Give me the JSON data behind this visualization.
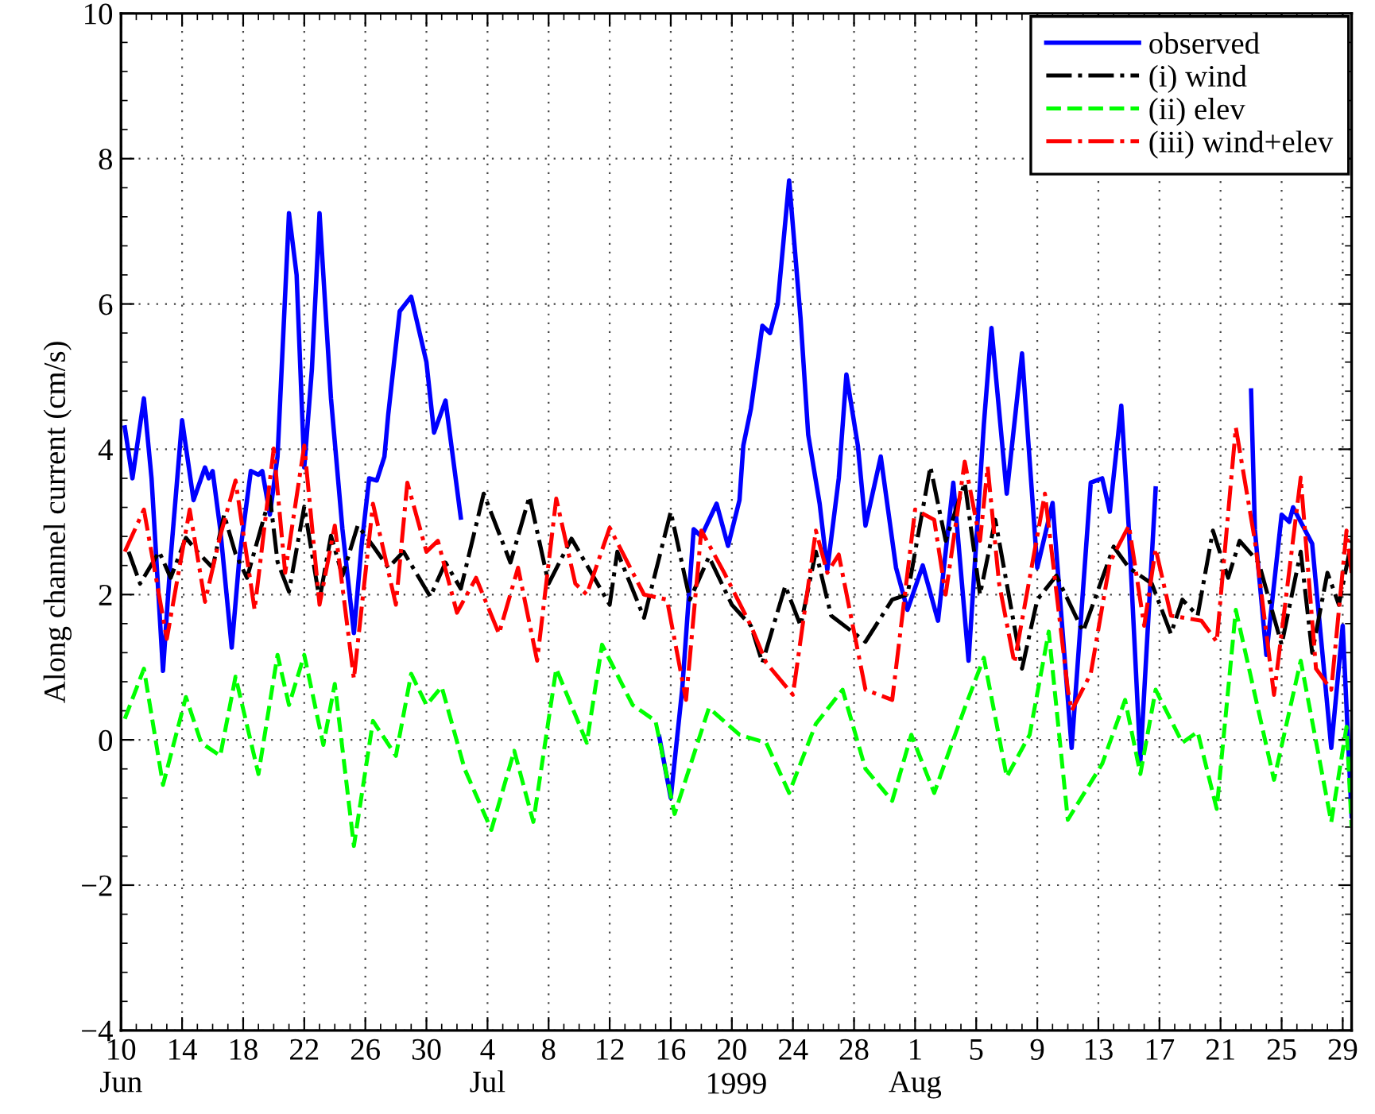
{
  "chart_data": {
    "type": "line",
    "xlabel": "1999",
    "ylabel": "Along channel current (cm/s)",
    "xlim": [
      "1999-06-10",
      "1999-08-29T14:00"
    ],
    "xticks": [
      {
        "value": "1999-06-10",
        "label": "10\nJun"
      },
      {
        "value": "1999-06-14",
        "label": "14"
      },
      {
        "value": "1999-06-18",
        "label": "18"
      },
      {
        "value": "1999-06-22",
        "label": "22"
      },
      {
        "value": "1999-06-26",
        "label": "26"
      },
      {
        "value": "1999-06-30",
        "label": "30"
      },
      {
        "value": "1999-07-04",
        "label": "4\nJul"
      },
      {
        "value": "1999-07-08",
        "label": "8"
      },
      {
        "value": "1999-07-12",
        "label": "12"
      },
      {
        "value": "1999-07-16",
        "label": "16"
      },
      {
        "value": "1999-07-20",
        "label": "20"
      },
      {
        "value": "1999-07-24",
        "label": "24"
      },
      {
        "value": "1999-07-28",
        "label": "28"
      },
      {
        "value": "1999-08-01",
        "label": "1\nAug"
      },
      {
        "value": "1999-08-05",
        "label": "5"
      },
      {
        "value": "1999-08-09",
        "label": "9"
      },
      {
        "value": "1999-08-13",
        "label": "13"
      },
      {
        "value": "1999-08-17",
        "label": "17"
      },
      {
        "value": "1999-08-21",
        "label": "21"
      },
      {
        "value": "1999-08-25",
        "label": "25"
      },
      {
        "value": "1999-08-29",
        "label": "29"
      }
    ],
    "ylim": [
      -4,
      10
    ],
    "yticks": [
      {
        "value": -4,
        "label": "−4"
      },
      {
        "value": -2,
        "label": "−2"
      },
      0,
      2,
      4,
      6,
      8,
      10
    ],
    "grid": true,
    "legend": "top right",
    "series": [
      {
        "name": "observed",
        "color": "#0000ff",
        "line_style": "solid",
        "x": [
          "1999-06-10T06:00",
          "1999-06-10T18:00",
          "1999-06-11T12:00",
          "1999-06-12T00:00",
          "1999-06-12T18:00",
          "1999-06-13T06:00",
          "1999-06-14T00:00",
          "1999-06-14T18:00",
          "1999-06-15T12:00",
          "1999-06-15T18:00",
          "1999-06-16T00:00",
          "1999-06-16T12:00",
          "1999-06-17T06:00",
          "1999-06-17T18:00",
          "1999-06-18T12:00",
          "1999-06-19T00:00",
          "1999-06-19T06:00",
          "1999-06-19T18:00",
          "1999-06-20T06:00",
          "1999-06-21T00:00",
          "1999-06-21T12:00",
          "1999-06-22T00:00",
          "1999-06-22T12:00",
          "1999-06-23T00:00",
          "1999-06-23T18:00",
          "1999-06-24T12:00",
          "1999-06-25T06:00",
          "1999-06-25T18:00",
          "1999-06-26T06:00",
          "1999-06-26T18:00",
          "1999-06-27T06:00",
          "1999-06-27T12:00",
          "1999-06-28T06:00",
          "1999-06-29T00:00",
          "1999-06-30T00:00",
          "1999-06-30T12:00",
          "1999-07-01T06:00",
          "1999-07-02T06:00",
          "1999-07-10T00:00",
          "1999-07-15T06:00",
          "1999-07-16T00:00",
          "1999-07-16T18:00",
          "1999-07-17T12:00",
          "1999-07-18T00:00",
          "1999-07-19T00:00",
          "1999-07-19T18:00",
          "1999-07-20T12:00",
          "1999-07-20T18:00",
          "1999-07-21T06:00",
          "1999-07-22T00:00",
          "1999-07-22T12:00",
          "1999-07-23T00:00",
          "1999-07-23T18:00",
          "1999-07-24T12:00",
          "1999-07-25T00:00",
          "1999-07-25T18:00",
          "1999-07-26T06:00",
          "1999-07-27T00:00",
          "1999-07-27T12:00",
          "1999-07-28T06:00",
          "1999-07-28T18:00",
          "1999-07-29T18:00",
          "1999-07-30T18:00",
          "1999-07-31T12:00",
          "1999-08-01T12:00",
          "1999-08-02T12:00",
          "1999-08-03T12:00",
          "1999-08-04T12:00",
          "1999-08-05T12:00",
          "1999-08-06T00:00",
          "1999-08-07T00:00",
          "1999-08-08T00:00",
          "1999-08-09T00:00",
          "1999-08-10T00:00",
          "1999-08-11T06:00",
          "1999-08-12T12:00",
          "1999-08-13T06:00",
          "1999-08-13T18:00",
          "1999-08-14T12:00",
          "1999-08-15T00:00",
          "1999-08-15T18:00",
          "1999-08-16T18:00",
          "1999-08-20T00:00",
          "1999-08-23T00:00",
          "1999-08-23T06:00",
          "1999-08-24T00:00",
          "1999-08-25T00:00",
          "1999-08-25T12:00",
          "1999-08-25T18:00",
          "1999-08-27T00:00",
          "1999-08-28T06:00",
          "1999-08-29T00:00",
          "1999-08-29T14:00"
        ],
        "values": [
          4.3,
          3.6,
          4.7,
          3.6,
          0.95,
          2.5,
          4.4,
          3.3,
          3.75,
          3.6,
          3.7,
          2.9,
          1.27,
          2.5,
          3.7,
          3.65,
          3.7,
          3.1,
          3.9,
          7.25,
          6.4,
          3.75,
          5.1,
          7.25,
          4.7,
          2.9,
          1.47,
          2.67,
          3.6,
          3.57,
          3.9,
          4.48,
          5.9,
          6.1,
          5.2,
          4.23,
          4.67,
          3.06,
          null,
          0.04,
          -0.8,
          0.7,
          2.9,
          2.8,
          3.25,
          2.67,
          3.3,
          4.05,
          4.56,
          5.7,
          5.6,
          6.0,
          7.7,
          5.8,
          4.2,
          3.25,
          2.34,
          3.6,
          5.03,
          4.05,
          2.95,
          3.9,
          2.37,
          1.79,
          2.4,
          1.64,
          3.54,
          1.09,
          4.34,
          5.67,
          3.39,
          5.32,
          2.37,
          3.26,
          -0.11,
          3.54,
          3.6,
          3.14,
          4.6,
          2.89,
          -0.29,
          3.46,
          null,
          4.81,
          2.89,
          1.17,
          3.1,
          3.0,
          3.2,
          2.7,
          -0.11,
          1.57,
          -1.05
        ]
      },
      {
        "name": "(i) wind",
        "color": "#000000",
        "line_style": "dashdot",
        "x": [
          "1999-06-10T12:00",
          "1999-06-11T06:00",
          "1999-06-12T12:00",
          "1999-06-13T06:00",
          "1999-06-14T06:00",
          "1999-06-15T00:00",
          "1999-06-16T00:00",
          "1999-06-16T18:00",
          "1999-06-17T12:00",
          "1999-06-18T06:00",
          "1999-06-19T18:00",
          "1999-06-20T06:00",
          "1999-06-21T00:00",
          "1999-06-22T00:00",
          "1999-06-23T00:00",
          "1999-06-23T18:00",
          "1999-06-24T12:00",
          "1999-06-25T12:00",
          "1999-06-26T12:00",
          "1999-06-27T12:00",
          "1999-06-28T12:00",
          "1999-06-30T06:00",
          "1999-07-01T06:00",
          "1999-07-02T06:00",
          "1999-07-03T18:00",
          "1999-07-05T12:00",
          "1999-07-06T18:00",
          "1999-07-08T00:00",
          "1999-07-09T12:00",
          "1999-07-12T00:00",
          "1999-07-12T12:00",
          "1999-07-14T06:00",
          "1999-07-16T00:00",
          "1999-07-17T06:00",
          "1999-07-18T12:00",
          "1999-07-20T00:00",
          "1999-07-21T06:00",
          "1999-07-22T00:00",
          "1999-07-23T12:00",
          "1999-07-24T12:00",
          "1999-07-25T12:00",
          "1999-07-26T12:00",
          "1999-07-28T18:00",
          "1999-07-30T12:00",
          "1999-07-31T12:00",
          "1999-08-02T00:00",
          "1999-08-03T00:00",
          "1999-08-04T06:00",
          "1999-08-05T06:00",
          "1999-08-06T06:00",
          "1999-08-08T00:00",
          "1999-08-09T00:00",
          "1999-08-10T06:00",
          "1999-08-12T00:00",
          "1999-08-14T00:00",
          "1999-08-15T00:00",
          "1999-08-16T12:00",
          "1999-08-17T18:00",
          "1999-08-18T12:00",
          "1999-08-19T12:00",
          "1999-08-20T12:00",
          "1999-08-21T12:00",
          "1999-08-22T06:00",
          "1999-08-23T12:00",
          "1999-08-25T00:00",
          "1999-08-26T06:00",
          "1999-08-27T00:00",
          "1999-08-28T00:00",
          "1999-08-28T18:00",
          "1999-08-29T14:00"
        ],
        "values": [
          2.59,
          2.15,
          2.59,
          2.23,
          2.78,
          2.59,
          2.37,
          3.1,
          2.56,
          2.23,
          3.35,
          2.45,
          2.04,
          3.21,
          1.93,
          2.81,
          2.26,
          2.95,
          2.67,
          2.37,
          2.59,
          1.97,
          2.44,
          2.08,
          3.39,
          2.44,
          3.35,
          2.15,
          2.77,
          1.86,
          2.59,
          1.68,
          3.14,
          1.93,
          2.52,
          1.86,
          1.57,
          1.06,
          2.12,
          1.57,
          2.59,
          1.71,
          1.35,
          1.93,
          2.0,
          3.76,
          2.74,
          3.54,
          2.0,
          3.03,
          0.98,
          1.93,
          2.26,
          1.49,
          2.66,
          2.37,
          2.15,
          1.46,
          1.93,
          1.71,
          2.88,
          2.23,
          2.74,
          2.44,
          1.31,
          2.59,
          1.2,
          2.3,
          1.86,
          2.74
        ]
      },
      {
        "name": "(ii) elev",
        "color": "#00ff00",
        "line_style": "dashed",
        "x": [
          "1999-06-10T06:00",
          "1999-06-11T12:00",
          "1999-06-12T18:00",
          "1999-06-14T06:00",
          "1999-06-15T06:00",
          "1999-06-16T12:00",
          "1999-06-17T12:00",
          "1999-06-19T00:00",
          "1999-06-20T06:00",
          "1999-06-21T00:00",
          "1999-06-22T00:00",
          "1999-06-23T06:00",
          "1999-06-24T00:00",
          "1999-06-25T06:00",
          "1999-06-26T12:00",
          "1999-06-28T00:00",
          "1999-06-29T00:00",
          "1999-06-30T00:00",
          "1999-07-01T00:00",
          "1999-07-02T12:00",
          "1999-07-04T06:00",
          "1999-07-05T18:00",
          "1999-07-07T00:00",
          "1999-07-08T12:00",
          "1999-07-10T12:00",
          "1999-07-11T12:00",
          "1999-07-13T12:00",
          "1999-07-15T00:00",
          "1999-07-16T06:00",
          "1999-07-18T12:00",
          "1999-07-20T12:00",
          "1999-07-22T06:00",
          "1999-07-23T18:00",
          "1999-07-25T12:00",
          "1999-07-27T06:00",
          "1999-07-28T18:00",
          "1999-07-30T12:00",
          "1999-07-31T18:00",
          "1999-08-02T06:00",
          "1999-08-04T06:00",
          "1999-08-05T12:00",
          "1999-08-07T00:00",
          "1999-08-08T12:00",
          "1999-08-09T18:00",
          "1999-08-11T00:00",
          "1999-08-13T06:00",
          "1999-08-14T18:00",
          "1999-08-15T18:00",
          "1999-08-16T18:00",
          "1999-08-18T12:00",
          "1999-08-19T12:00",
          "1999-08-20T18:00",
          "1999-08-22T00:00",
          "1999-08-24T12:00",
          "1999-08-26T06:00",
          "1999-08-28T06:00",
          "1999-08-29T06:00",
          "1999-08-29T14:00"
        ],
        "values": [
          0.29,
          0.98,
          -0.62,
          0.59,
          -0.04,
          -0.22,
          0.87,
          -0.47,
          1.17,
          0.48,
          1.17,
          -0.07,
          0.77,
          -1.46,
          0.26,
          -0.22,
          0.91,
          0.48,
          0.73,
          -0.4,
          -1.24,
          -0.15,
          -1.13,
          0.98,
          -0.04,
          1.31,
          0.48,
          0.26,
          -1.02,
          0.44,
          0.07,
          -0.04,
          -0.73,
          0.22,
          0.69,
          -0.4,
          -0.84,
          0.07,
          -0.73,
          0.44,
          1.13,
          -0.51,
          0.07,
          1.49,
          -1.1,
          -0.33,
          0.55,
          -0.47,
          0.69,
          -0.04,
          0.11,
          -0.95,
          1.79,
          -0.55,
          1.09,
          -1.13,
          0.18,
          -1.2
        ]
      },
      {
        "name": "(iii) wind+elev",
        "color": "#ff0000",
        "line_style": "dashdot",
        "x": [
          "1999-06-10T06:00",
          "1999-06-11T12:00",
          "1999-06-13T00:00",
          "1999-06-14T12:00",
          "1999-06-15T12:00",
          "1999-06-16T12:00",
          "1999-06-17T12:00",
          "1999-06-18T18:00",
          "1999-06-20T00:00",
          "1999-06-20T18:00",
          "1999-06-22T00:00",
          "1999-06-23T00:00",
          "1999-06-24T00:00",
          "1999-06-25T06:00",
          "1999-06-26T12:00",
          "1999-06-28T00:00",
          "1999-06-28T18:00",
          "1999-06-30T00:00",
          "1999-06-30T18:00",
          "1999-07-02T00:00",
          "1999-07-03T06:00",
          "1999-07-04T18:00",
          "1999-07-06T00:00",
          "1999-07-07T06:00",
          "1999-07-08T12:00",
          "1999-07-09T18:00",
          "1999-07-10T12:00",
          "1999-07-12T00:00",
          "1999-07-14T06:00",
          "1999-07-15T18:00",
          "1999-07-17T00:00",
          "1999-07-18T00:00",
          "1999-07-19T12:00",
          "1999-07-21T06:00",
          "1999-07-22T06:00",
          "1999-07-24T00:00",
          "1999-07-25T12:00",
          "1999-07-26T06:00",
          "1999-07-27T00:00",
          "1999-07-28T18:00",
          "1999-07-30T12:00",
          "1999-08-01T00:00",
          "1999-08-02T06:00",
          "1999-08-03T00:00",
          "1999-08-04T06:00",
          "1999-08-05T06:00",
          "1999-08-05T18:00",
          "1999-08-06T12:00",
          "1999-08-07T12:00",
          "1999-08-09T12:00",
          "1999-08-11T00:00",
          "1999-08-11T06:00",
          "1999-08-12T12:00",
          "1999-08-13T18:00",
          "1999-08-15T00:00",
          "1999-08-16T00:00",
          "1999-08-16T18:00",
          "1999-08-17T18:00",
          "1999-08-19T18:00",
          "1999-08-20T18:00",
          "1999-08-22T00:00",
          "1999-08-23T06:00",
          "1999-08-24T12:00",
          "1999-08-26T06:00",
          "1999-08-27T06:00",
          "1999-08-28T06:00",
          "1999-08-29T06:00",
          "1999-08-29T14:00"
        ],
        "values": [
          2.59,
          3.17,
          1.39,
          3.17,
          1.9,
          2.81,
          3.57,
          1.79,
          4.01,
          2.3,
          4.05,
          1.86,
          2.95,
          0.84,
          3.25,
          1.86,
          3.54,
          2.59,
          2.74,
          1.75,
          2.23,
          1.46,
          2.37,
          1.09,
          3.32,
          2.15,
          2.0,
          2.92,
          2.0,
          1.93,
          0.55,
          2.88,
          2.3,
          1.57,
          1.06,
          0.62,
          2.88,
          2.3,
          2.55,
          0.69,
          0.55,
          3.17,
          3.03,
          2.0,
          3.83,
          2.74,
          3.76,
          2.15,
          1.06,
          3.39,
          0.69,
          0.4,
          0.91,
          2.44,
          2.95,
          1.57,
          2.63,
          1.71,
          1.64,
          1.35,
          4.3,
          2.74,
          0.62,
          3.61,
          0.98,
          0.69,
          2.88,
          2.3
        ]
      }
    ]
  }
}
